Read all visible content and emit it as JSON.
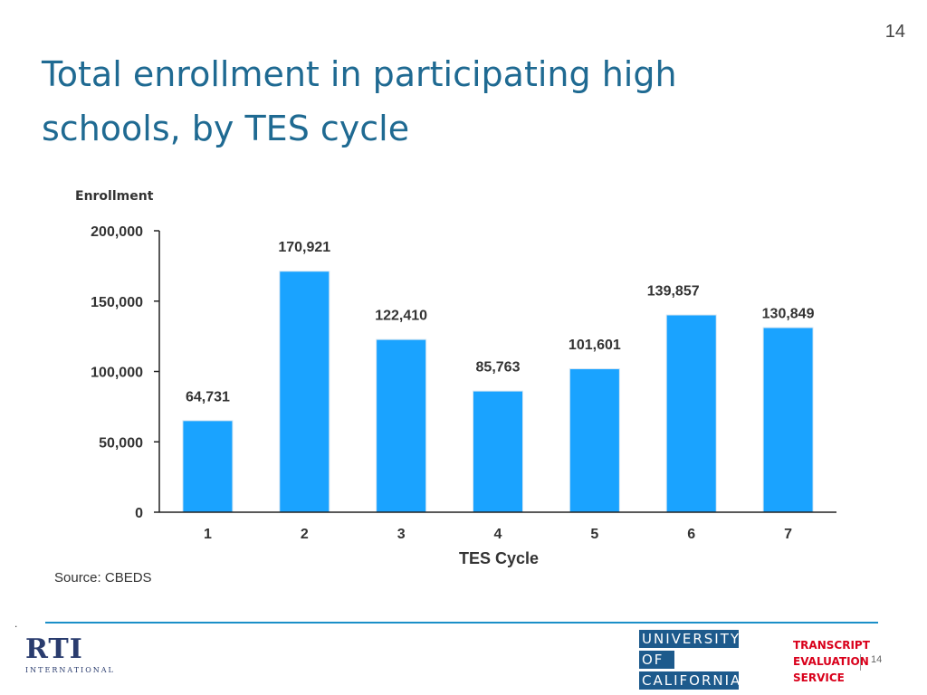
{
  "page_number": "14",
  "title": "Total enrollment in participating high schools, by TES cycle",
  "source": "Source: CBEDS",
  "footer": {
    "dot": ".",
    "rti_logo": "RTI",
    "rti_logo_sub": "INTERNATIONAL",
    "uc_logo_lines": [
      "UNIVERSITY",
      "OF",
      "CALIFORNIA"
    ],
    "tes_logo_lines": [
      "TRANSCRIPT",
      "EVALUATION",
      "SERVICE"
    ],
    "footer_page_number": "14"
  },
  "colors": {
    "bar": "#1aa3ff",
    "title": "#1f6a92",
    "footer_rule": "#1b8fc8",
    "tes_red": "#d9001b",
    "uc_blue": "#1d5a8c"
  },
  "chart_data": {
    "type": "bar",
    "categories": [
      "1",
      "2",
      "3",
      "4",
      "5",
      "6",
      "7"
    ],
    "values": [
      64731,
      170921,
      122410,
      85763,
      101601,
      139857,
      130849
    ],
    "data_labels": [
      "64,731",
      "170,921",
      "122,410",
      "85,763",
      "101,601",
      "139,857",
      "130,849"
    ],
    "ylabel": "Enrollment",
    "xlabel": "TES Cycle",
    "ylim": [
      0,
      200000
    ],
    "yticks": [
      0,
      50000,
      100000,
      150000,
      200000
    ],
    "ytick_labels": [
      "0",
      "50,000",
      "100,000",
      "150,000",
      "200,000"
    ],
    "grid": false,
    "legend": "none"
  }
}
